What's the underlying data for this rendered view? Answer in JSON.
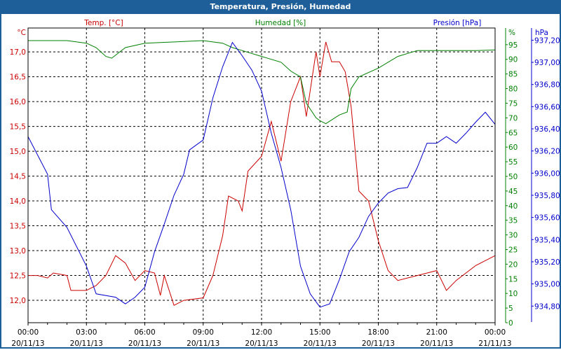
{
  "window": {
    "title": "Temperatura, Presión, Humedad"
  },
  "chart_data": {
    "type": "line",
    "title": "Temperatura, Presión, Humedad",
    "x_unit": "hours since 20/11/13 00:00",
    "xlim": [
      0,
      24
    ],
    "x_ticks": [
      {
        "h": 0,
        "time": "00:00",
        "date": "20/11/13"
      },
      {
        "h": 3,
        "time": "03:00",
        "date": "20/11/13"
      },
      {
        "h": 6,
        "time": "06:00",
        "date": "20/11/13"
      },
      {
        "h": 9,
        "time": "09:00",
        "date": "20/11/13"
      },
      {
        "h": 12,
        "time": "12:00",
        "date": "20/11/13"
      },
      {
        "h": 15,
        "time": "15:00",
        "date": "20/11/13"
      },
      {
        "h": 18,
        "time": "18:00",
        "date": "20/11/13"
      },
      {
        "h": 21,
        "time": "21:00",
        "date": "20/11/13"
      },
      {
        "h": 24,
        "time": "00:00",
        "date": "21/11/13"
      }
    ],
    "axes": {
      "temp": {
        "unit": "°C",
        "legend": "Temp. [°C]",
        "ylim": [
          11.55,
          17.48
        ],
        "ticks": [
          "12,0",
          "12,5",
          "13,0",
          "13,5",
          "14,0",
          "14,5",
          "15,0",
          "15,5",
          "16,0",
          "16,5",
          "17,0"
        ],
        "tick_values": [
          12,
          12.5,
          13,
          13.5,
          14,
          14.5,
          15,
          15.5,
          16,
          16.5,
          17
        ],
        "color": "#cc0000"
      },
      "hum": {
        "unit": "%",
        "legend": "Humedad [%]",
        "ylim": [
          0,
          100.7
        ],
        "ticks": [
          "0",
          "5",
          "10",
          "15",
          "20",
          "25",
          "30",
          "35",
          "40",
          "45",
          "50",
          "55",
          "60",
          "65",
          "70",
          "75",
          "80",
          "85",
          "90",
          "95"
        ],
        "tick_values": [
          0,
          5,
          10,
          15,
          20,
          25,
          30,
          35,
          40,
          45,
          50,
          55,
          60,
          65,
          70,
          75,
          80,
          85,
          90,
          95
        ],
        "color": "#008000"
      },
      "pres": {
        "unit": "hPa",
        "legend": "Presión [hPa]",
        "ylim": [
          934.65,
          937.31
        ],
        "ticks": [
          "934,80",
          "935,00",
          "935,20",
          "935,40",
          "935,60",
          "935,80",
          "936,00",
          "936,20",
          "936,40",
          "936,60",
          "936,80",
          "937,00",
          "937,20"
        ],
        "tick_values": [
          934.8,
          935.0,
          935.2,
          935.4,
          935.6,
          935.8,
          936.0,
          936.2,
          936.4,
          936.6,
          936.8,
          937.0,
          937.2
        ],
        "color": "#0000cc"
      }
    },
    "grid": true,
    "series": [
      {
        "name": "Temp. [°C]",
        "axis": "temp",
        "color": "#cc0000",
        "x": [
          0,
          0.5,
          1,
          1.3,
          2,
          2.2,
          3,
          3.5,
          4,
          4.5,
          5,
          5.5,
          6,
          6.5,
          6.8,
          7,
          7.5,
          8,
          9,
          9.5,
          10,
          10.3,
          10.8,
          11,
          11.3,
          12,
          12.5,
          13,
          13.5,
          14,
          14.3,
          14.8,
          15,
          15.3,
          15.6,
          16,
          16.3,
          16.6,
          17,
          17.5,
          18,
          18.5,
          19,
          19.5,
          20,
          21,
          21.5,
          22,
          23,
          24
        ],
        "y": [
          12.5,
          12.5,
          12.45,
          12.55,
          12.5,
          12.2,
          12.2,
          12.3,
          12.5,
          12.9,
          12.75,
          12.4,
          12.6,
          12.55,
          12.1,
          12.5,
          11.9,
          12.0,
          12.05,
          12.5,
          13.3,
          14.1,
          14.0,
          13.8,
          14.6,
          14.9,
          15.6,
          14.8,
          16.0,
          16.5,
          15.7,
          17.0,
          16.5,
          17.2,
          16.8,
          16.8,
          16.6,
          15.9,
          14.2,
          14.0,
          13.2,
          12.6,
          12.4,
          12.45,
          12.5,
          12.6,
          12.2,
          12.4,
          12.7,
          12.9
        ]
      },
      {
        "name": "Humedad [%]",
        "axis": "hum",
        "color": "#008000",
        "x": [
          0,
          2,
          3,
          3.5,
          4,
          4.3,
          5,
          6,
          7,
          9,
          10,
          10.5,
          11,
          12,
          13,
          13.5,
          14,
          14.3,
          14.8,
          15,
          15.3,
          16,
          16.4,
          16.6,
          17,
          18,
          19,
          20,
          21,
          22,
          23,
          24
        ],
        "y": [
          96.4,
          96.4,
          95.5,
          94,
          91,
          90.4,
          94,
          95.5,
          95.8,
          96.4,
          95.5,
          94,
          93,
          91,
          89,
          86,
          84,
          75,
          70,
          69,
          68,
          71,
          72,
          80,
          84,
          87,
          91,
          93,
          93,
          93,
          93,
          93.2
        ]
      },
      {
        "name": "Presión [hPa]",
        "axis": "pres",
        "color": "#0000cc",
        "x": [
          0,
          1,
          1.2,
          2,
          3,
          3.5,
          4.5,
          5,
          5.5,
          6,
          6.5,
          7,
          7.5,
          8,
          8.3,
          9,
          9.5,
          10,
          10.5,
          11,
          11.5,
          12,
          12.5,
          13,
          13.5,
          14,
          14.5,
          15,
          15.5,
          16,
          16.5,
          17,
          17.5,
          18,
          18.5,
          19,
          19.5,
          20,
          20.5,
          21,
          21.5,
          22,
          22.5,
          23,
          23.5,
          24
        ],
        "y": [
          936.33,
          935.99,
          935.67,
          935.51,
          935.16,
          934.91,
          934.88,
          934.82,
          934.88,
          934.97,
          935.29,
          935.54,
          935.8,
          935.99,
          936.21,
          936.3,
          936.68,
          936.96,
          937.18,
          937.06,
          936.93,
          936.74,
          936.36,
          936.05,
          935.67,
          935.16,
          934.91,
          934.79,
          934.82,
          935.04,
          935.29,
          935.42,
          935.61,
          935.73,
          935.82,
          935.86,
          935.87,
          936.05,
          936.27,
          936.27,
          936.33,
          936.27,
          936.36,
          936.46,
          936.55,
          936.44
        ]
      }
    ]
  }
}
